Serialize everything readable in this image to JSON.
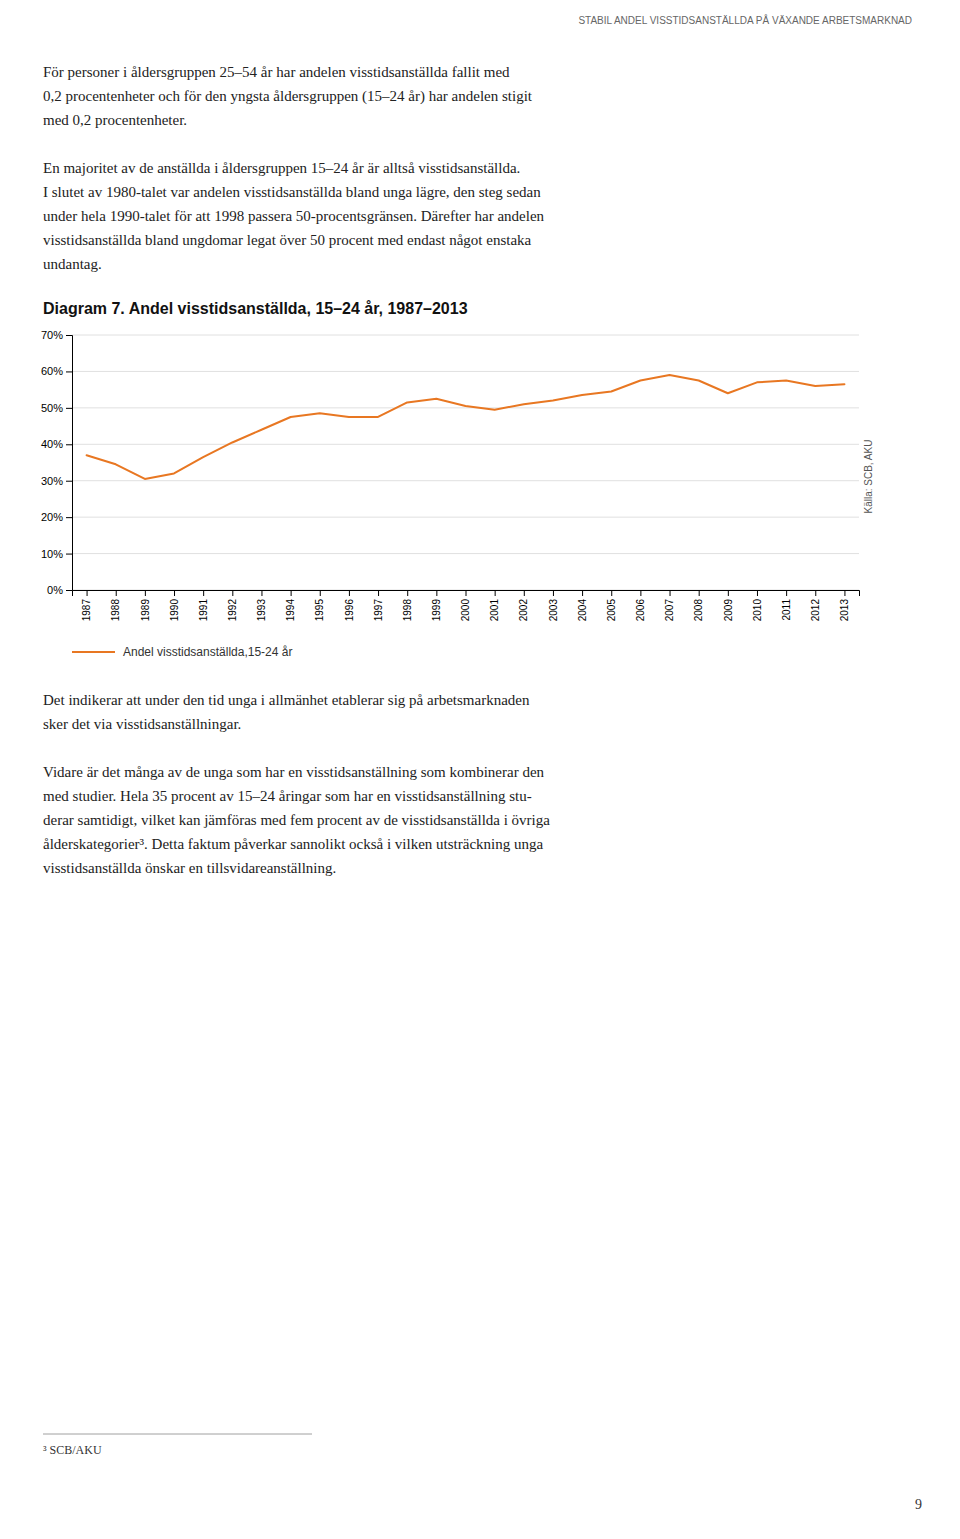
{
  "header": "STABIL ANDEL VISSTIDSANSTÄLLDA PÅ VÄXANDE ARBETSMARKNAD",
  "body_paragraphs": [
    [
      "För personer i åldersgruppen 25–54 år har andelen visstidsanställda fallit med",
      "0,2 procentenheter och för den yngsta åldersgruppen (15–24 år) har andelen stigit",
      "med 0,2 procentenheter."
    ],
    [
      "En majoritet av de anställda i åldersgruppen 15–24 år är alltså visstidsanställda.",
      "I slutet av 1980-talet var andelen visstidsanställda bland unga lägre, den steg sedan",
      "under hela 1990-talet för att 1998 passera 50-procentsgränsen. Därefter har andelen",
      "visstidsanställda bland ungdomar legat över 50 procent med endast något enstaka",
      "undantag."
    ]
  ],
  "chart_data": {
    "type": "line",
    "title": "Diagram 7. Andel visstidsanställda, 15–24 år, 1987–2013",
    "x": [
      1987,
      1988,
      1989,
      1990,
      1991,
      1992,
      1993,
      1994,
      1995,
      1996,
      1997,
      1998,
      1999,
      2000,
      2001,
      2002,
      2003,
      2004,
      2005,
      2006,
      2007,
      2008,
      2009,
      2010,
      2011,
      2012,
      2013
    ],
    "series": [
      {
        "name": "Andel visstidsanställda,15-24 år",
        "color": "#E87722",
        "values": [
          37.0,
          34.5,
          30.5,
          32.0,
          36.5,
          40.5,
          44.0,
          47.5,
          48.5,
          47.5,
          47.5,
          51.5,
          52.5,
          50.5,
          49.5,
          51.0,
          52.0,
          53.5,
          54.5,
          57.5,
          59.0,
          57.5,
          54.0,
          57.0,
          57.5,
          56.0,
          56.5
        ]
      }
    ],
    "xlim": [
      1986.5,
      2013.5
    ],
    "xticks": [
      1987,
      1988,
      1989,
      1990,
      1991,
      1992,
      1993,
      1994,
      1995,
      1996,
      1997,
      1998,
      1999,
      2000,
      2001,
      2002,
      2003,
      2004,
      2005,
      2006,
      2007,
      2008,
      2009,
      2010,
      2011,
      2012,
      2013
    ],
    "ylim": [
      0,
      70
    ],
    "yticks": [
      {
        "value": 0,
        "label": "0%"
      },
      {
        "value": 10,
        "label": "10%"
      },
      {
        "value": 20,
        "label": "20%"
      },
      {
        "value": 30,
        "label": "30%"
      },
      {
        "value": 40,
        "label": "40%"
      },
      {
        "value": 50,
        "label": "50%"
      },
      {
        "value": 60,
        "label": "60%"
      },
      {
        "value": 70,
        "label": "70%"
      }
    ],
    "grid": true,
    "annotations": [
      "Källa: SCB, AKU"
    ]
  },
  "footer_paragraphs": [
    [
      "Det indikerar att under den tid unga i allmänhet etablerar sig på arbetsmarknaden",
      "sker det via visstidsanställningar."
    ],
    [
      "Vidare är det många av de unga som har en visstidsanställning som kombinerar den",
      "med studier. Hela 35 procent av 15–24 åringar som har en visstidsanställning stu-",
      "derar samtidigt, vilket kan jämföras med fem procent av de visstidsanställda i övriga",
      "ålderskategorier³. Detta faktum påverkar sannolikt också i vilken utsträckning unga",
      "visstidsanställda önskar en tillsvidareanställning."
    ]
  ],
  "footnote": "³  SCB/AKU",
  "page_number": "9"
}
